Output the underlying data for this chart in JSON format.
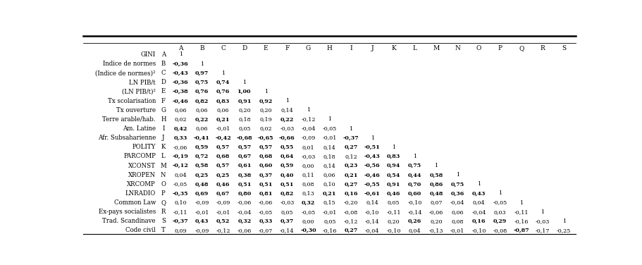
{
  "col_letters": [
    "A",
    "B",
    "C",
    "D",
    "E",
    "F",
    "G",
    "H",
    "I",
    "J",
    "K",
    "L",
    "M",
    "N",
    "O",
    "P",
    "Q",
    "R",
    "S"
  ],
  "rows": [
    {
      "label": "GINI",
      "letter": "A",
      "values": [
        "1",
        "",
        "",
        "",
        "",
        "",
        "",
        "",
        "",
        "",
        "",
        "",
        "",
        "",
        "",
        "",
        "",
        "",
        ""
      ]
    },
    {
      "label": "Indice de normes",
      "letter": "B",
      "values": [
        "-0,36",
        "1",
        "",
        "",
        "",
        "",
        "",
        "",
        "",
        "",
        "",
        "",
        "",
        "",
        "",
        "",
        "",
        "",
        ""
      ]
    },
    {
      "label": "(Indice de normes)²",
      "letter": "C",
      "values": [
        "-0,43",
        "0,97",
        "1",
        "",
        "",
        "",
        "",
        "",
        "",
        "",
        "",
        "",
        "",
        "",
        "",
        "",
        "",
        "",
        ""
      ]
    },
    {
      "label": "LN PIB/t",
      "letter": "D",
      "values": [
        "-0,36",
        "0,75",
        "0,74",
        "1",
        "",
        "",
        "",
        "",
        "",
        "",
        "",
        "",
        "",
        "",
        "",
        "",
        "",
        "",
        ""
      ]
    },
    {
      "label": "(LN PIB/t)²",
      "letter": "E",
      "values": [
        "-0,38",
        "0,76",
        "0,76",
        "1,00",
        "1",
        "",
        "",
        "",
        "",
        "",
        "",
        "",
        "",
        "",
        "",
        "",
        "",
        "",
        ""
      ]
    },
    {
      "label": "Tx scolarisation",
      "letter": "F",
      "values": [
        "-0,46",
        "0,82",
        "0,83",
        "0,91",
        "0,92",
        "1",
        "",
        "",
        "",
        "",
        "",
        "",
        "",
        "",
        "",
        "",
        "",
        "",
        ""
      ]
    },
    {
      "label": "Tx ouverture",
      "letter": "G",
      "values": [
        "0,06",
        "0,06",
        "0,06",
        "0,20",
        "0,20",
        "0,14",
        "1",
        "",
        "",
        "",
        "",
        "",
        "",
        "",
        "",
        "",
        "",
        "",
        ""
      ]
    },
    {
      "label": "Terre arable/hab.",
      "letter": "H",
      "values": [
        "0,02",
        "0,22",
        "0,21",
        "0,18",
        "0,19",
        "0,22",
        "-0,12",
        "1",
        "",
        "",
        "",
        "",
        "",
        "",
        "",
        "",
        "",
        "",
        ""
      ]
    },
    {
      "label": "Am. Latine",
      "letter": "I",
      "values": [
        "0,42",
        "0,06",
        "-0,01",
        "0,05",
        "0,02",
        "-0,03",
        "-0,04",
        "-0,05",
        "1",
        "",
        "",
        "",
        "",
        "",
        "",
        "",
        "",
        "",
        ""
      ]
    },
    {
      "label": "Afr. Subsaharienne",
      "letter": "J",
      "values": [
        "0,33",
        "-0,41",
        "-0,42",
        "-0,68",
        "-0,65",
        "-0,66",
        "-0,09",
        "-0,01",
        "-0,37",
        "1",
        "",
        "",
        "",
        "",
        "",
        "",
        "",
        "",
        ""
      ]
    },
    {
      "label": "POLITY",
      "letter": "K",
      "values": [
        "-0,06",
        "0,59",
        "0,57",
        "0,57",
        "0,57",
        "0,55",
        "0,01",
        "0,14",
        "0,27",
        "-0,51",
        "1",
        "",
        "",
        "",
        "",
        "",
        "",
        "",
        ""
      ]
    },
    {
      "label": "PARCOMP",
      "letter": "L",
      "values": [
        "-0,19",
        "0,72",
        "0,68",
        "0,67",
        "0,68",
        "0,64",
        "-0,03",
        "0,18",
        "0,12",
        "-0,43",
        "0,83",
        "1",
        "",
        "",
        "",
        "",
        "",
        "",
        ""
      ]
    },
    {
      "label": "XCONST",
      "letter": "M",
      "values": [
        "-0,12",
        "0,58",
        "0,57",
        "0,61",
        "0,60",
        "0,59",
        "0,00",
        "0,14",
        "0,23",
        "-0,56",
        "0,94",
        "0,75",
        "1",
        "",
        "",
        "",
        "",
        "",
        ""
      ]
    },
    {
      "label": "XROPEN",
      "letter": "N",
      "values": [
        "0,04",
        "0,25",
        "0,25",
        "0,38",
        "0,37",
        "0,40",
        "0,11",
        "0,06",
        "0,21",
        "-0,46",
        "0,54",
        "0,44",
        "0,58",
        "1",
        "",
        "",
        "",
        "",
        ""
      ]
    },
    {
      "label": "XRCOMP",
      "letter": "O",
      "values": [
        "-0,05",
        "0,48",
        "0,46",
        "0,51",
        "0,51",
        "0,51",
        "0,08",
        "0,10",
        "0,27",
        "-0,55",
        "0,91",
        "0,70",
        "0,86",
        "0,75",
        "1",
        "",
        "",
        "",
        ""
      ]
    },
    {
      "label": "LNRADIO",
      "letter": "P",
      "values": [
        "-0,35",
        "0,69",
        "0,67",
        "0,80",
        "0,81",
        "0,82",
        "0,13",
        "0,21",
        "0,16",
        "-0,61",
        "0,46",
        "0,60",
        "0,48",
        "0,36",
        "0,43",
        "1",
        "",
        "",
        ""
      ]
    },
    {
      "label": "Common Law",
      "letter": "Q",
      "values": [
        "0,10",
        "-0,09",
        "-0,09",
        "-0,06",
        "-0,06",
        "-0,03",
        "0,32",
        "0,15",
        "-0,20",
        "0,14",
        "0,05",
        "-0,10",
        "0,07",
        "-0,04",
        "0,04",
        "-0,05",
        "1",
        "",
        ""
      ]
    },
    {
      "label": "Ex-pays socialistes",
      "letter": "R",
      "values": [
        "-0,11",
        "-0,01",
        "-0,01",
        "-0,04",
        "-0,05",
        "0,05",
        "-0,05",
        "-0,01",
        "-0,08",
        "-0,10",
        "-0,11",
        "-0,14",
        "-0,06",
        "0,06",
        "-0,04",
        "0,03",
        "-0,11",
        "1",
        ""
      ]
    },
    {
      "label": "Trad. Scandinave",
      "letter": "S",
      "values": [
        "-0,37",
        "0,43",
        "0,52",
        "0,32",
        "0,33",
        "0,37",
        "0,00",
        "0,05",
        "-0,12",
        "-0,14",
        "0,20",
        "0,26",
        "0,20",
        "0,08",
        "0,16",
        "0,29",
        "-0,16",
        "-0,03",
        "1"
      ]
    },
    {
      "label": "Code civil",
      "letter": "T",
      "values": [
        "0,09",
        "-0,09",
        "-0,12",
        "-0,06",
        "-0,07",
        "-0,14",
        "-0,30",
        "-0,16",
        "0,27",
        "-0,04",
        "-0,10",
        "0,04",
        "-0,13",
        "-0,01",
        "-0,10",
        "-0,08",
        "-0,87",
        "-0,17",
        "-0,25"
      ]
    }
  ],
  "bold_values": [
    "-0,36",
    "-0,43",
    "-0,36",
    "0,75",
    "0,74",
    "-0,38",
    "0,76",
    "0,76",
    "1,00",
    "-0,46",
    "0,82",
    "0,83",
    "0,91",
    "0,92",
    "0,97",
    "0,22",
    "0,42",
    "0,33",
    "-0,41",
    "-0,42",
    "-0,68",
    "-0,65",
    "-0,66",
    "-0,37",
    "0,59",
    "0,57",
    "0,57",
    "0,57",
    "0,55",
    "0,27",
    "-0,51",
    "-0,19",
    "0,72",
    "0,68",
    "0,67",
    "0,68",
    "0,64",
    "-0,43",
    "0,83",
    "0,58",
    "0,57",
    "0,61",
    "0,60",
    "0,59",
    "0,23",
    "-0,56",
    "0,94",
    "0,75",
    "0,25",
    "0,25",
    "0,38",
    "0,37",
    "0,40",
    "-0,46",
    "0,54",
    "0,44",
    "0,58",
    "0,48",
    "0,46",
    "0,51",
    "0,51",
    "0,51",
    "0,27",
    "-0,55",
    "0,91",
    "0,70",
    "0,86",
    "0,75",
    "-0,35",
    "0,69",
    "0,67",
    "0,80",
    "0,81",
    "0,82",
    "0,21",
    "0,16",
    "-0,61",
    "0,46",
    "0,60",
    "0,48",
    "0,36",
    "0,43",
    "0,32",
    "-0,37",
    "0,43",
    "0,52",
    "0,32",
    "0,33",
    "0,37",
    "0,26",
    "0,29",
    "0,27",
    "-0,30",
    "-0,87"
  ],
  "bold_by_position": {
    "1_0": true,
    "3_0": true,
    "7_1": true,
    "7_5": true,
    "10_8": true,
    "11_9": true,
    "12_0": true,
    "13_10": true,
    "14_9": true
  }
}
